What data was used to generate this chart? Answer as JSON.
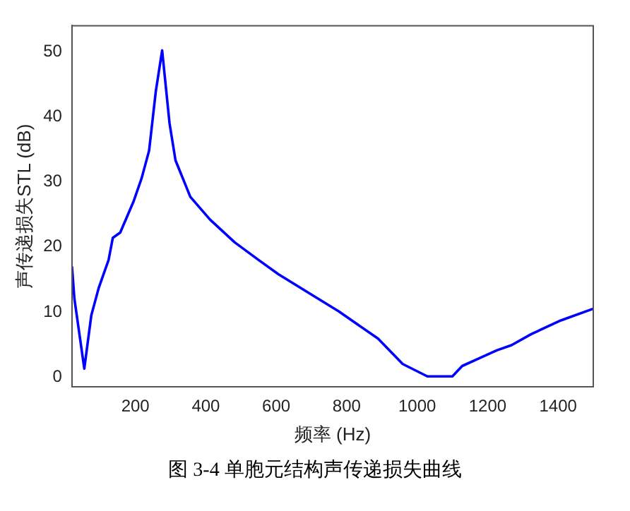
{
  "chart_data": {
    "type": "line",
    "xlabel": "频率 (Hz)",
    "ylabel": "声传递损失STL (dB)",
    "annotations": [
      "图 3-4  单胞元结构声传递损失曲线"
    ],
    "x": [
      20,
      27,
      55,
      75,
      96,
      124,
      136,
      157,
      195,
      218,
      239,
      258,
      276,
      297,
      314,
      356,
      412,
      482,
      552,
      606,
      693,
      777,
      889,
      959,
      1029,
      1100,
      1128,
      1226,
      1268,
      1324,
      1408,
      1500
    ],
    "series": [
      {
        "color": "#0000ff",
        "values": [
          17,
          12,
          1.3,
          9.5,
          13.7,
          18,
          21.4,
          22.2,
          27,
          30.6,
          34.8,
          43.9,
          50.2,
          39,
          33.3,
          27.7,
          24.2,
          20.7,
          17.9,
          15.8,
          12.9,
          10.1,
          5.9,
          2,
          0.1,
          0.1,
          1.7,
          4.1,
          4.9,
          6.6,
          8.7,
          10.5
        ]
      }
    ],
    "xlim": [
      20,
      1500
    ],
    "xticks": [
      200,
      400,
      600,
      800,
      1000,
      1200,
      1400
    ],
    "ylim": [
      -1.5,
      54
    ],
    "yticks": [
      0,
      10,
      20,
      30,
      40,
      50
    ],
    "grid": false,
    "legend": false,
    "marker": "none",
    "line_style": "solid"
  }
}
